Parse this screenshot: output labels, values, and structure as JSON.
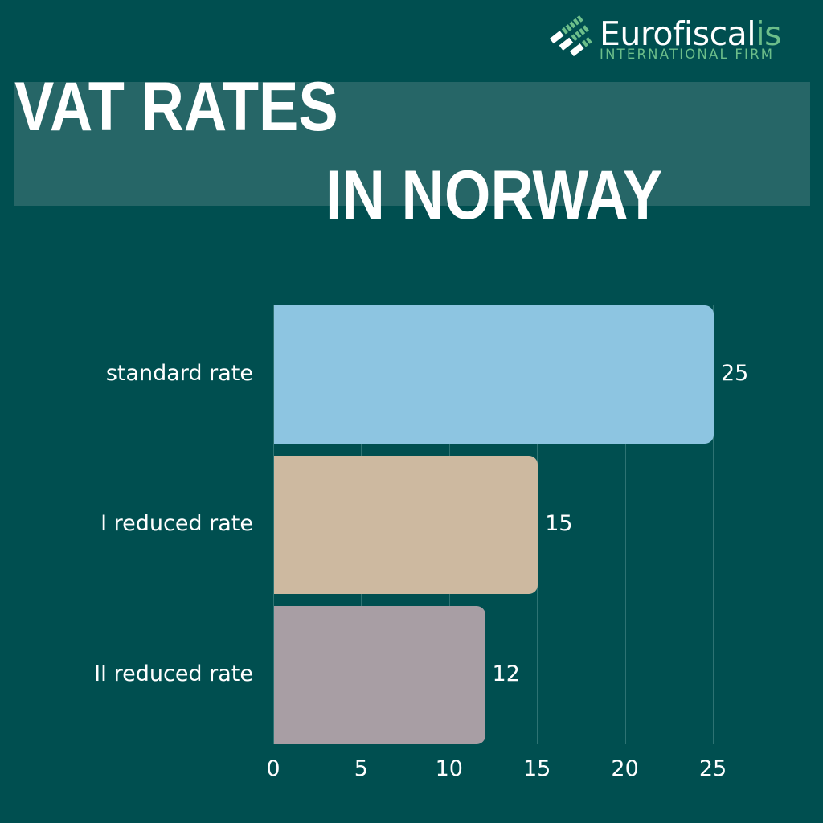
{
  "brand": {
    "name_main": "Eurofiscal",
    "name_accent": "is",
    "tagline": "INTERNATIONAL FIRM",
    "icon": "eurofiscalis-logo-icon"
  },
  "title": {
    "line1": "VAT RATES",
    "line2": "IN NORWAY"
  },
  "colors": {
    "background": "#004F50",
    "title_band": "#266667",
    "brand_green": "#6CBE8A",
    "bar_standard": "#8DC5E1",
    "bar_reduced_1": "#CDB9A0",
    "bar_reduced_2": "#A89EA4",
    "gridline": "#2E7373"
  },
  "chart_data": {
    "type": "bar",
    "orientation": "horizontal",
    "title": "VAT RATES IN NORWAY",
    "categories": [
      "standard rate",
      "I reduced rate",
      "II reduced rate"
    ],
    "values": [
      25,
      15,
      12
    ],
    "value_labels": [
      "25",
      "15",
      "12"
    ],
    "xlabel": "",
    "ylabel": "",
    "xlim": [
      0,
      25
    ],
    "x_ticks": [
      0,
      5,
      10,
      15,
      20,
      25
    ],
    "x_tick_labels": [
      "0",
      "5",
      "10",
      "15",
      "20",
      "25"
    ],
    "grid": true,
    "legend": null
  }
}
